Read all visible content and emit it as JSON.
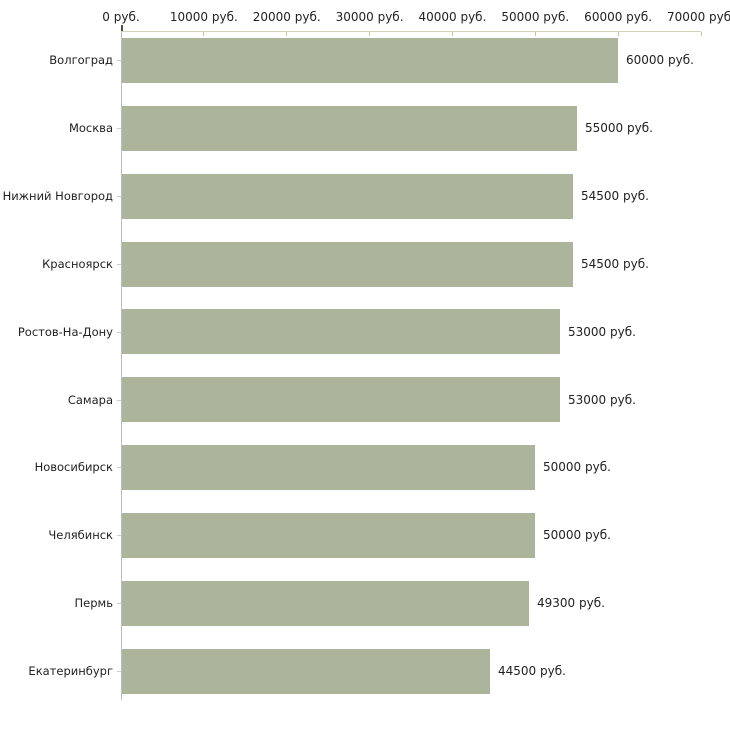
{
  "chart_data": {
    "type": "bar",
    "orientation": "horizontal",
    "title": "",
    "xlabel": "",
    "ylabel": "",
    "categories": [
      "Волгоград",
      "Москва",
      "Нижний Новгород",
      "Красноярск",
      "Ростов-На-Дону",
      "Самара",
      "Новосибирск",
      "Челябинск",
      "Пермь",
      "Екатеринбург"
    ],
    "values": [
      60000,
      55000,
      54500,
      54500,
      53000,
      53000,
      50000,
      50000,
      49300,
      44500
    ],
    "value_labels": [
      "60000 руб.",
      "55000 руб.",
      "54500 руб.",
      "54500 руб.",
      "53000 руб.",
      "53000 руб.",
      "50000 руб.",
      "50000 руб.",
      "49300 руб.",
      "44500 руб."
    ],
    "unit": "руб.",
    "x_axis": {
      "min": 0,
      "max": 70000,
      "tick_step": 10000,
      "ticks": [
        {
          "value": 0,
          "label": "0 руб."
        },
        {
          "value": 10000,
          "label": "10000 руб."
        },
        {
          "value": 20000,
          "label": "20000 руб."
        },
        {
          "value": 30000,
          "label": "30000 руб."
        },
        {
          "value": 40000,
          "label": "40000 руб."
        },
        {
          "value": 50000,
          "label": "50000 руб."
        },
        {
          "value": 60000,
          "label": "60000 руб."
        },
        {
          "value": 70000,
          "label": "70000 руб."
        }
      ]
    },
    "legend": false,
    "grid": false,
    "colors": {
      "bar": "#acb49b",
      "text": "#222222",
      "x_axis_line": "#d6d3b6",
      "x_tick": "#c8c59b",
      "y_axis_line": "#bdbdb5",
      "y_tick": "#cfccc0",
      "origin_tick": "#4d4d4d",
      "background": "#ffffff"
    }
  }
}
